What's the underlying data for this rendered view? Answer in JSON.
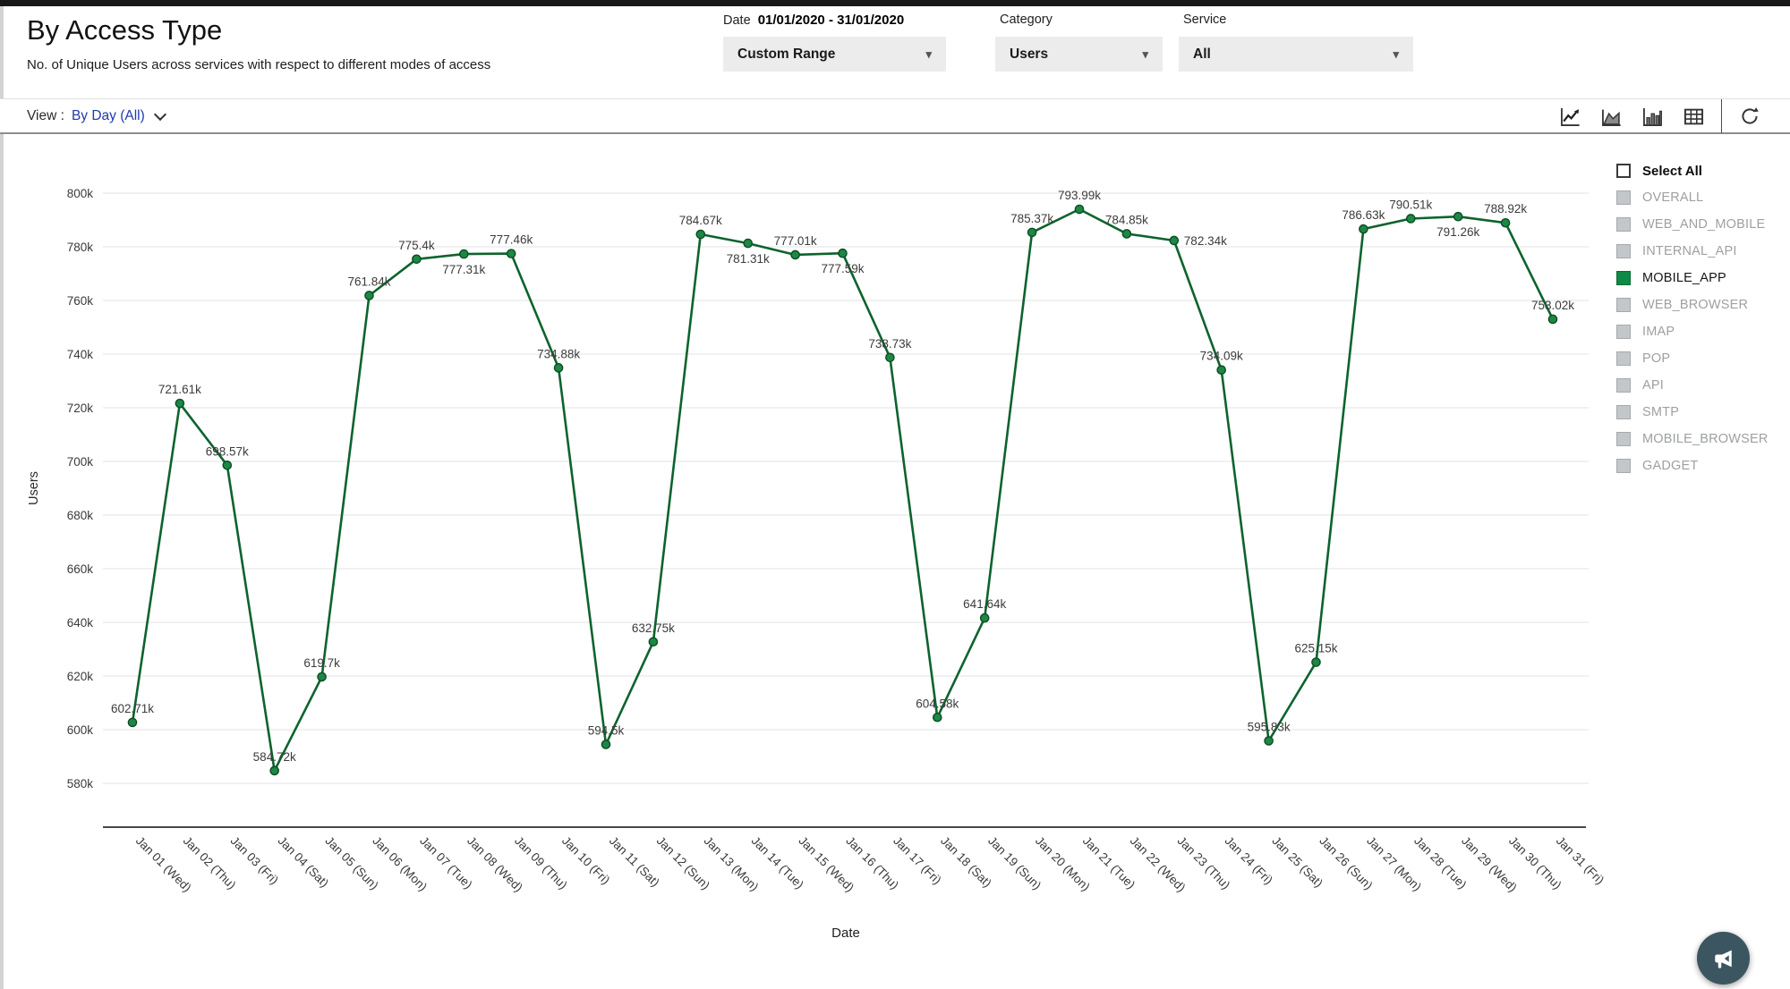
{
  "header": {
    "title": "By Access Type",
    "subtitle": "No. of Unique Users across services with respect to different modes of access",
    "filters": {
      "date": {
        "label": "Date",
        "value": "01/01/2020 - 31/01/2020",
        "select": "Custom Range"
      },
      "category": {
        "label": "Category",
        "select": "Users"
      },
      "service": {
        "label": "Service",
        "select": "All"
      }
    }
  },
  "toolbar": {
    "view_label": "View :",
    "view_value": "By Day  (All)",
    "icons": [
      "line-chart",
      "area-chart",
      "bar-chart",
      "table",
      "refresh"
    ]
  },
  "legend": {
    "select_all": "Select All",
    "items": [
      {
        "label": "OVERALL",
        "checked": false
      },
      {
        "label": "WEB_AND_MOBILE",
        "checked": false
      },
      {
        "label": "INTERNAL_API",
        "checked": false
      },
      {
        "label": "MOBILE_APP",
        "checked": true
      },
      {
        "label": "WEB_BROWSER",
        "checked": false
      },
      {
        "label": "IMAP",
        "checked": false
      },
      {
        "label": "POP",
        "checked": false
      },
      {
        "label": "API",
        "checked": false
      },
      {
        "label": "SMTP",
        "checked": false
      },
      {
        "label": "MOBILE_BROWSER",
        "checked": false
      },
      {
        "label": "GADGET",
        "checked": false
      }
    ]
  },
  "colors": {
    "line": "#0d632d",
    "point_fill": "#1e8745",
    "point_border": "#0a4e23",
    "grid": "#e3e3e3",
    "axis": "#2e2e2e",
    "tick_text": "#3a3a3a",
    "label_text": "#3c3c3c",
    "legend_green": "#0d8a44",
    "link_blue": "#1e3ca8",
    "fab": "#3b5661"
  },
  "chart_data": {
    "type": "line",
    "title": "By Access Type",
    "xlabel": "Date",
    "ylabel": "Users",
    "unit": "k (thousands of users)",
    "ylim_k": [
      563,
      818
    ],
    "yticks": [
      "800k",
      "780k",
      "760k",
      "740k",
      "720k",
      "700k",
      "680k",
      "660k",
      "640k",
      "620k",
      "600k",
      "580k"
    ],
    "grid": "horizontal",
    "legend_position": "right",
    "categories": [
      "Jan 01 (Wed)",
      "Jan 02 (Thu)",
      "Jan 03 (Fri)",
      "Jan 04 (Sat)",
      "Jan 05 (Sun)",
      "Jan 06 (Mon)",
      "Jan 07 (Tue)",
      "Jan 08 (Wed)",
      "Jan 09 (Thu)",
      "Jan 10 (Fri)",
      "Jan 11 (Sat)",
      "Jan 12 (Sun)",
      "Jan 13 (Mon)",
      "Jan 14 (Tue)",
      "Jan 15 (Wed)",
      "Jan 16 (Thu)",
      "Jan 17 (Fri)",
      "Jan 18 (Sat)",
      "Jan 19 (Sun)",
      "Jan 20 (Mon)",
      "Jan 21 (Tue)",
      "Jan 22 (Wed)",
      "Jan 23 (Thu)",
      "Jan 24 (Fri)",
      "Jan 25 (Sat)",
      "Jan 26 (Sun)",
      "Jan 27 (Mon)",
      "Jan 28 (Tue)",
      "Jan 29 (Wed)",
      "Jan 30 (Thu)",
      "Jan 31 (Fri)"
    ],
    "series": [
      {
        "name": "MOBILE_APP",
        "values_k": [
          602.71,
          721.61,
          698.57,
          584.72,
          619.7,
          761.84,
          775.4,
          777.31,
          777.46,
          734.88,
          594.5,
          632.75,
          784.67,
          781.31,
          777.01,
          777.59,
          738.73,
          604.58,
          641.64,
          785.37,
          793.99,
          784.85,
          782.34,
          734.09,
          595.83,
          625.15,
          786.63,
          790.51,
          791.26,
          788.92,
          753.02
        ],
        "point_labels": [
          "602.71k",
          "721.61k",
          "698.57k",
          "584.72k",
          "619.7k",
          "761.84k",
          "775.4k",
          "777.31k",
          "777.46k",
          "734.88k",
          "594.5k",
          "632.75k",
          "784.67k",
          "781.31k",
          "777.01k",
          "777.59k",
          "738.73k",
          "604.58k",
          "641.64k",
          "785.37k",
          "793.99k",
          "784.85k",
          "782.34k",
          "734.09k",
          "595.83k",
          "625.15k",
          "786.63k",
          "790.51k",
          "791.26k",
          "788.92k",
          "753.02k"
        ],
        "label_pos": [
          "above",
          "above",
          "above",
          "above",
          "above",
          "above",
          "above",
          "below",
          "above",
          "above",
          "above",
          "above",
          "above",
          "below",
          "above",
          "below",
          "above",
          "above",
          "above",
          "above",
          "above",
          "above",
          "right",
          "above",
          "above",
          "above",
          "above",
          "above",
          "below",
          "above",
          "above"
        ]
      }
    ]
  },
  "fab": {
    "icon": "megaphone"
  }
}
